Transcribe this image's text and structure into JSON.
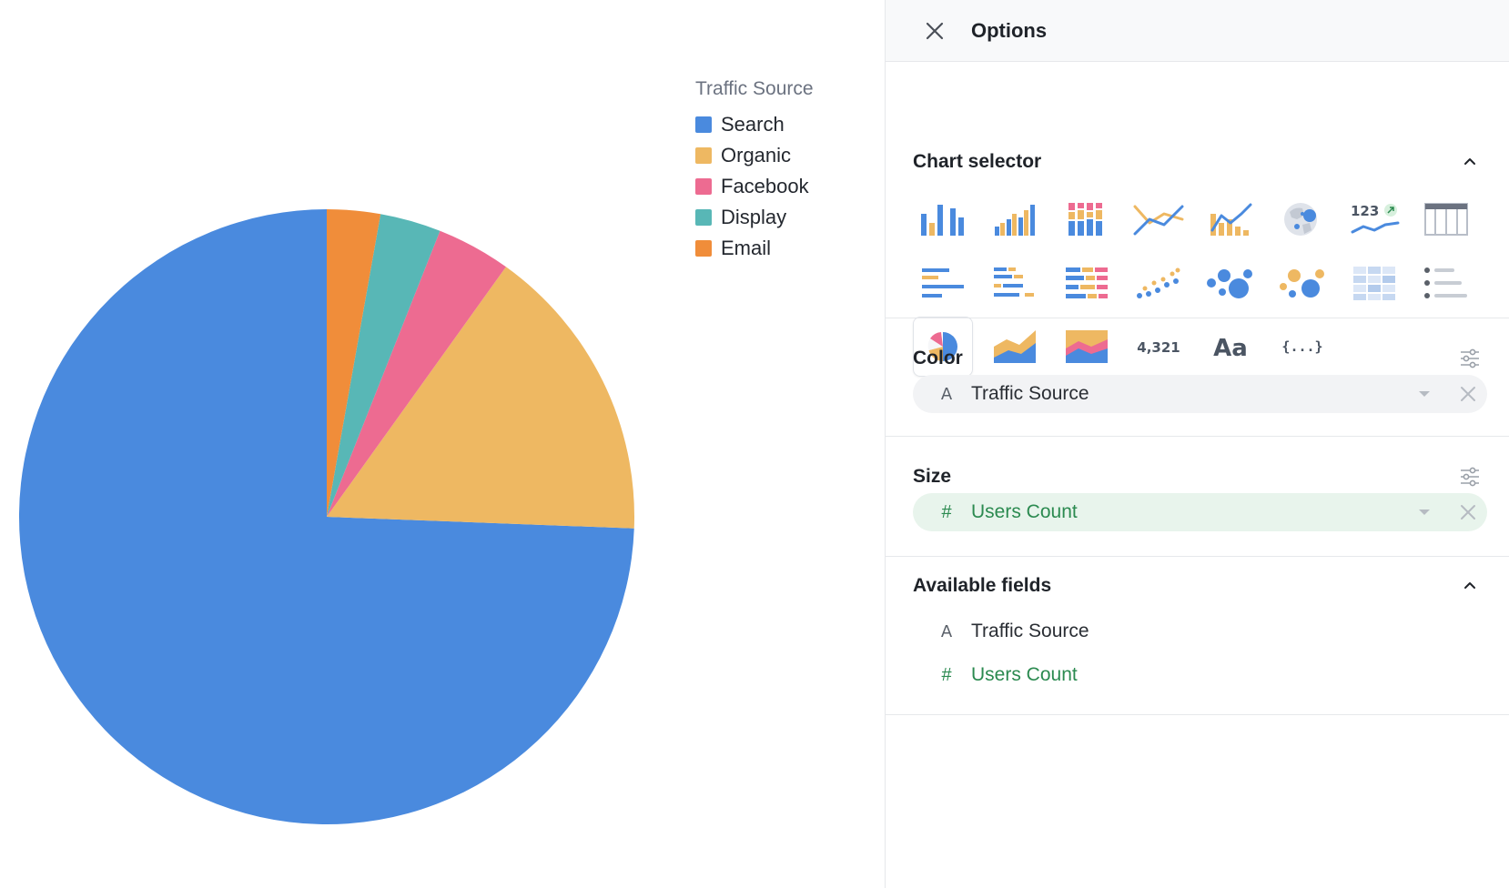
{
  "chart": {
    "legend_title": "Traffic Source",
    "legend": [
      {
        "label": "Search",
        "color": "#4a8ade"
      },
      {
        "label": "Organic",
        "color": "#eeb862"
      },
      {
        "label": "Facebook",
        "color": "#ed6b91"
      },
      {
        "label": "Display",
        "color": "#58b7b6"
      },
      {
        "label": "Email",
        "color": "#f08d3a"
      }
    ]
  },
  "chart_data": {
    "type": "pie",
    "title": "",
    "categories": [
      "Search",
      "Organic",
      "Facebook",
      "Display",
      "Email"
    ],
    "values": [
      74.4,
      15.7,
      3.9,
      3.2,
      2.8
    ],
    "colors": [
      "#4a8ade",
      "#eeb862",
      "#ed6b91",
      "#58b7b6",
      "#f08d3a"
    ],
    "legend_placement": "top-right"
  },
  "panel": {
    "title": "Options",
    "chart_selector": {
      "title": "Chart selector",
      "icons": [
        "bar-chart-icon",
        "grouped-bar-chart-icon",
        "stacked-bar-chart-icon",
        "line-chart-icon",
        "combo-chart-icon",
        "map-chart-icon",
        "trend-number-icon",
        "table-icon",
        "horizontal-bar-chart-icon",
        "grouped-horizontal-bar-chart-icon",
        "stacked-horizontal-bar-chart-icon",
        "scatter-chart-icon",
        "bubble-chart-icon",
        "multi-bubble-chart-icon",
        "heatmap-icon",
        "list-icon",
        "pie-chart-icon",
        "area-chart-icon",
        "stacked-area-chart-icon",
        "number-icon",
        "text-icon",
        "json-icon"
      ],
      "selected": "pie-chart-icon",
      "trend_number_label": "123",
      "number_label": "4,321",
      "text_label": "Aa",
      "json_label": "{...}"
    },
    "color": {
      "title": "Color",
      "field_type_glyph": "A",
      "field": "Traffic Source"
    },
    "size": {
      "title": "Size",
      "field_type_glyph": "#",
      "field": "Users Count"
    },
    "available_fields": {
      "title": "Available fields",
      "items": [
        {
          "glyph": "A",
          "label": "Traffic Source"
        },
        {
          "glyph": "#",
          "label": "Users Count"
        }
      ]
    }
  }
}
